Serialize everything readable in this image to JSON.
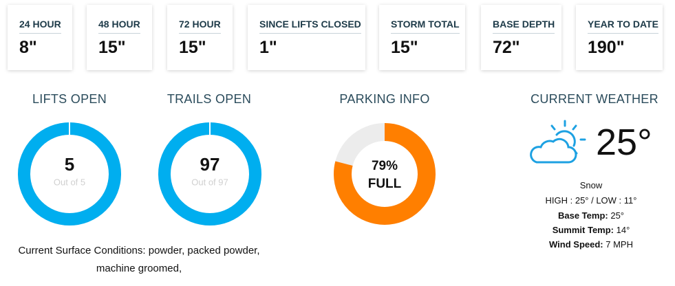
{
  "stats": [
    {
      "label": "24 HOUR",
      "value": "8\""
    },
    {
      "label": "48 HOUR",
      "value": "15\""
    },
    {
      "label": "72 HOUR",
      "value": "15\""
    },
    {
      "label": "SINCE LIFTS CLOSED",
      "value": "1\""
    },
    {
      "label": "STORM TOTAL",
      "value": "15\""
    },
    {
      "label": "BASE DEPTH",
      "value": "72\""
    },
    {
      "label": "YEAR TO DATE",
      "value": "190\""
    }
  ],
  "lifts": {
    "title": "LIFTS OPEN",
    "open": 5,
    "total": 5,
    "total_label": "Out of 5"
  },
  "trails": {
    "title": "TRAILS OPEN",
    "open": 97,
    "total": 97,
    "total_label": "Out of 97"
  },
  "parking": {
    "title": "PARKING INFO",
    "value": 79,
    "value_label": "79%",
    "status": "FULL"
  },
  "surface_conditions": "Current Surface Conditions: powder, packed powder, machine groomed,",
  "weather": {
    "title": "CURRENT WEATHER",
    "temperature": "25°",
    "condition": "Snow",
    "high_low": "HIGH : 25° / LOW : 11°",
    "details": [
      {
        "label": "Base Temp:",
        "value": "25°"
      },
      {
        "label": "Summit Temp:",
        "value": "14°"
      },
      {
        "label": "Wind Speed:",
        "value": "7 MPH"
      }
    ]
  }
}
